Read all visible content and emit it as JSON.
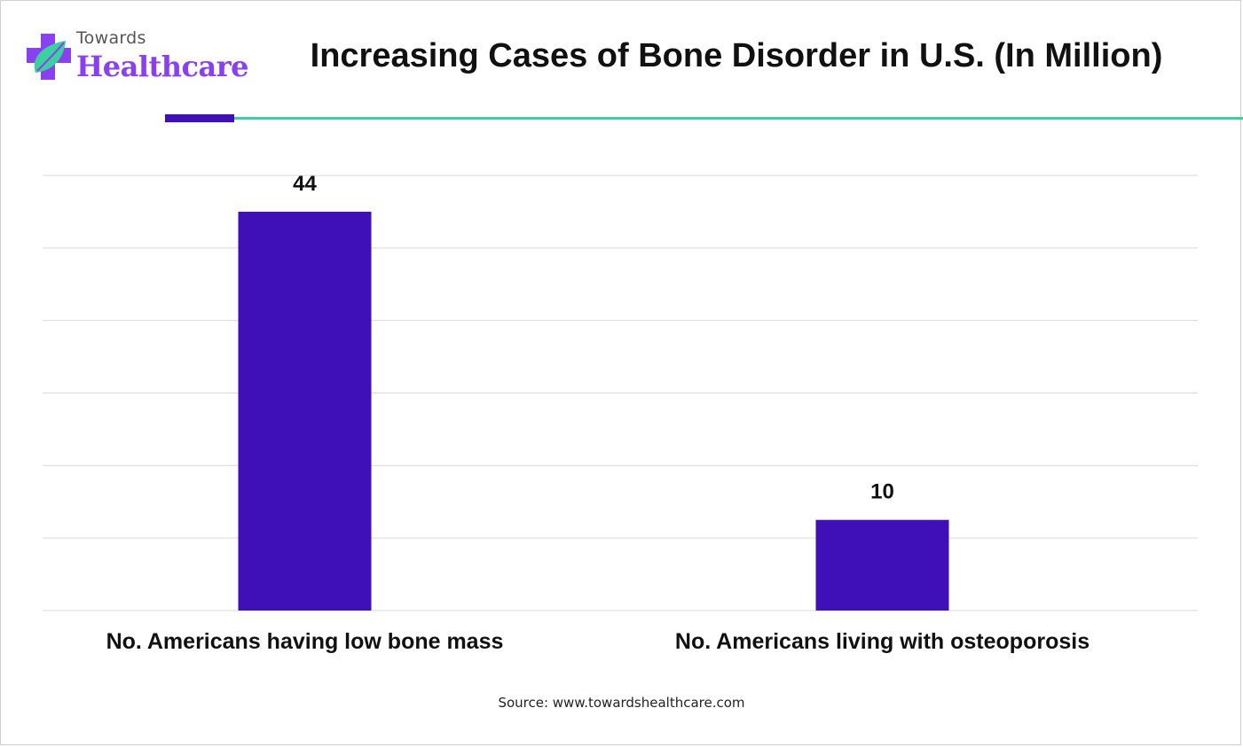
{
  "brand": {
    "top_text": "Towards",
    "main_text": "Healthcare",
    "logo_icon": "cross-leaf-icon",
    "color": "#8a3ff0"
  },
  "colors": {
    "bar": "#3f0fb7",
    "accent_dark": "#3f0fb7",
    "accent_teal": "#3ccf9f",
    "grid": "#d9d9d9"
  },
  "source": "Source: www.towardshealthcare.com",
  "chart_data": {
    "type": "bar",
    "title": "Increasing Cases of Bone Disorder in U.S. (In Million)",
    "categories": [
      "No. Americans having low bone mass",
      "No. Americans living with osteoporosis"
    ],
    "values": [
      44,
      10
    ],
    "data_labels": [
      "44",
      "10"
    ],
    "xlabel": "",
    "ylabel": "",
    "ylim": [
      0,
      48
    ],
    "grid": true,
    "legend": "none"
  }
}
